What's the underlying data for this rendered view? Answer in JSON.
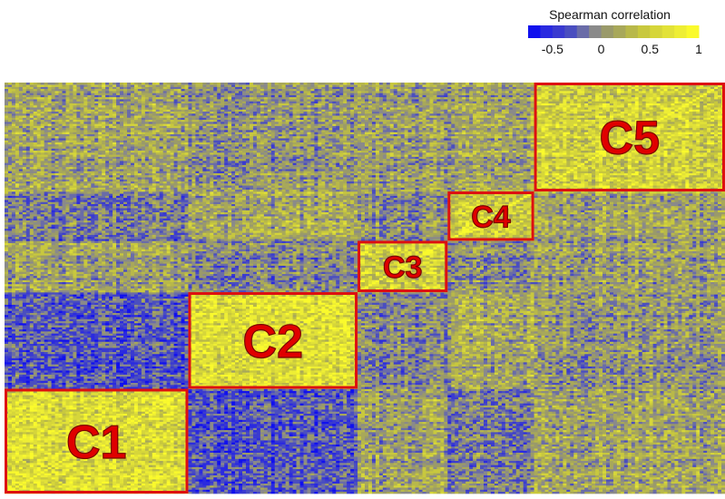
{
  "chart_data": {
    "type": "heatmap",
    "title": "",
    "xlabel": "",
    "ylabel": "",
    "ordering": "clustered, symmetric correlation matrix with diagonal from bottom-left to top-right",
    "grid": false,
    "matrix_size": 200,
    "color_scale": {
      "title": "Spearman correlation",
      "range": [
        -0.75,
        1
      ],
      "ticks": [
        {
          "value": -0.5,
          "label": "-0.5"
        },
        {
          "value": 0,
          "label": "0"
        },
        {
          "value": 0.5,
          "label": "0.5"
        },
        {
          "value": 1,
          "label": "1"
        }
      ],
      "bins": [
        {
          "from": -0.75,
          "to": -0.625,
          "color": "#1010ee"
        },
        {
          "from": -0.625,
          "to": -0.5,
          "color": "#2a2ae0"
        },
        {
          "from": -0.5,
          "to": -0.375,
          "color": "#3a3ad0"
        },
        {
          "from": -0.375,
          "to": -0.25,
          "color": "#4a4ec0"
        },
        {
          "from": -0.25,
          "to": -0.125,
          "color": "#6a6ca8"
        },
        {
          "from": -0.125,
          "to": 0,
          "color": "#8a8a8a"
        },
        {
          "from": 0,
          "to": 0.125,
          "color": "#9a9a6a"
        },
        {
          "from": 0.125,
          "to": 0.25,
          "color": "#a8a85a"
        },
        {
          "from": 0.25,
          "to": 0.375,
          "color": "#b8b84a"
        },
        {
          "from": 0.375,
          "to": 0.5,
          "color": "#c8c83e"
        },
        {
          "from": 0.5,
          "to": 0.625,
          "color": "#d6d63a"
        },
        {
          "from": 0.625,
          "to": 0.75,
          "color": "#e2e238"
        },
        {
          "from": 0.75,
          "to": 0.875,
          "color": "#eeee34"
        },
        {
          "from": 0.875,
          "to": 1,
          "color": "#fafa2c"
        }
      ]
    },
    "clusters": [
      {
        "label": "C1",
        "start": 0,
        "end": 51
      },
      {
        "label": "C2",
        "start": 51,
        "end": 98
      },
      {
        "label": "C3",
        "start": 98,
        "end": 123
      },
      {
        "label": "C4",
        "start": 123,
        "end": 147
      },
      {
        "label": "C5",
        "start": 147,
        "end": 200
      }
    ],
    "block_mean_correlation": [
      [
        0.6,
        -0.3,
        0.1,
        -0.1,
        0.15
      ],
      [
        -0.3,
        0.65,
        -0.05,
        0.2,
        0.05
      ],
      [
        0.1,
        -0.05,
        0.5,
        0.0,
        0.1
      ],
      [
        -0.1,
        0.2,
        0.0,
        0.5,
        0.15
      ],
      [
        0.15,
        0.05,
        0.1,
        0.15,
        0.55
      ]
    ],
    "annotations": [
      "C1",
      "C2",
      "C3",
      "C4",
      "C5"
    ]
  }
}
